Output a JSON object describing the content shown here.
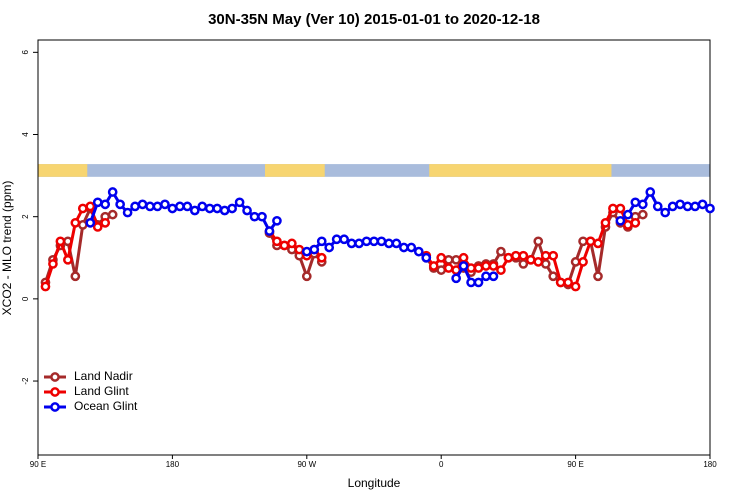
{
  "chart_data": {
    "type": "line",
    "title": "30N-35N May (Ver 10)   2015-01-01 to 2020-12-18",
    "xlabel": "Longitude",
    "ylabel": "XCO2 - MLO trend (ppm)",
    "xlim": [
      90,
      540
    ],
    "ylim": [
      -3.8,
      6.3
    ],
    "xticks": [
      {
        "value": 90,
        "label": "90 E"
      },
      180,
      {
        "value": 270,
        "label": "90 W"
      },
      {
        "value": 360,
        "label": "0"
      },
      {
        "value": 450,
        "label": "90 E"
      },
      {
        "value": 540,
        "label": "180"
      }
    ],
    "yticks": [
      -2,
      0,
      2,
      4,
      6
    ],
    "grid": false,
    "legend": "bottom-left",
    "land_mask": {
      "ylim": [
        2.97,
        3.28
      ],
      "ranges": [
        [
          90,
          123
        ],
        [
          242,
          282
        ],
        [
          352,
          474
        ]
      ],
      "land_color": "#f7d571",
      "ocean_color": "#a9bcdc"
    },
    "series": [
      {
        "name": "Land Nadir",
        "color": "#a52a2a",
        "x": [
          95,
          100,
          105,
          110,
          115,
          120,
          125,
          130,
          135,
          140,
          190,
          245,
          250,
          255,
          260,
          265,
          270,
          275,
          280,
          310,
          350,
          355,
          360,
          365,
          370,
          375,
          380,
          385,
          390,
          395,
          400,
          405,
          410,
          415,
          420,
          425,
          430,
          435,
          440,
          445,
          450,
          455,
          460,
          465,
          470,
          475,
          480,
          485,
          490,
          495
        ],
        "values": [
          0.4,
          0.95,
          1.3,
          1.4,
          0.55,
          1.8,
          2.2,
          1.8,
          2.0,
          2.05,
          null,
          1.6,
          1.3,
          1.3,
          1.2,
          1.05,
          0.55,
          1.1,
          0.9,
          null,
          1.0,
          0.75,
          0.7,
          0.95,
          0.95,
          0.75,
          0.65,
          0.8,
          0.85,
          0.85,
          1.15,
          1.0,
          1.0,
          0.85,
          0.95,
          1.4,
          0.85,
          0.55,
          0.4,
          0.35,
          0.9,
          1.4,
          1.4,
          0.55,
          1.75,
          2.1,
          1.85,
          1.75,
          2.0,
          2.05
        ]
      },
      {
        "name": "Land Glint",
        "color": "#ee0000",
        "x": [
          95,
          100,
          105,
          110,
          115,
          120,
          125,
          130,
          135,
          190,
          245,
          250,
          255,
          260,
          265,
          270,
          275,
          280,
          310,
          350,
          355,
          360,
          365,
          370,
          375,
          380,
          385,
          390,
          395,
          400,
          405,
          410,
          415,
          420,
          425,
          430,
          435,
          440,
          445,
          450,
          455,
          460,
          465,
          470,
          475,
          480,
          485,
          490
        ],
        "values": [
          0.3,
          0.85,
          1.4,
          0.95,
          1.85,
          2.2,
          2.25,
          1.75,
          1.85,
          null,
          1.65,
          1.4,
          1.3,
          1.35,
          1.2,
          1.05,
          1.2,
          1.0,
          null,
          1.05,
          0.8,
          1.0,
          0.75,
          0.7,
          1.0,
          0.75,
          0.75,
          0.8,
          0.8,
          0.7,
          1.0,
          1.05,
          1.05,
          0.95,
          0.9,
          1.05,
          1.05,
          0.4,
          0.4,
          0.3,
          0.9,
          1.4,
          1.35,
          1.85,
          2.2,
          2.2,
          1.8,
          1.85
        ]
      },
      {
        "name": "Ocean Glint",
        "color": "#0000ee",
        "x": [
          125,
          130,
          135,
          140,
          145,
          150,
          155,
          160,
          165,
          170,
          175,
          180,
          185,
          190,
          195,
          200,
          205,
          210,
          215,
          220,
          225,
          230,
          235,
          240,
          245,
          250,
          260,
          270,
          275,
          280,
          285,
          290,
          295,
          300,
          305,
          310,
          315,
          320,
          325,
          330,
          335,
          340,
          345,
          350,
          360,
          370,
          375,
          380,
          385,
          390,
          395,
          440,
          480,
          485,
          490,
          495,
          500,
          505,
          510,
          515,
          520,
          525,
          530,
          535,
          540
        ],
        "values": [
          1.85,
          2.35,
          2.3,
          2.6,
          2.3,
          2.1,
          2.25,
          2.3,
          2.25,
          2.25,
          2.3,
          2.2,
          2.25,
          2.25,
          2.15,
          2.25,
          2.2,
          2.2,
          2.15,
          2.2,
          2.35,
          2.15,
          2.0,
          2.0,
          1.65,
          1.9,
          null,
          1.15,
          1.2,
          1.4,
          1.25,
          1.45,
          1.45,
          1.35,
          1.35,
          1.4,
          1.4,
          1.4,
          1.35,
          1.35,
          1.25,
          1.25,
          1.15,
          1.0,
          null,
          0.5,
          0.8,
          0.4,
          0.4,
          0.55,
          0.55,
          null,
          1.9,
          2.05,
          2.35,
          2.3,
          2.6,
          2.25,
          2.1,
          2.25,
          2.3,
          2.25,
          2.25,
          2.3,
          2.2
        ]
      }
    ]
  }
}
